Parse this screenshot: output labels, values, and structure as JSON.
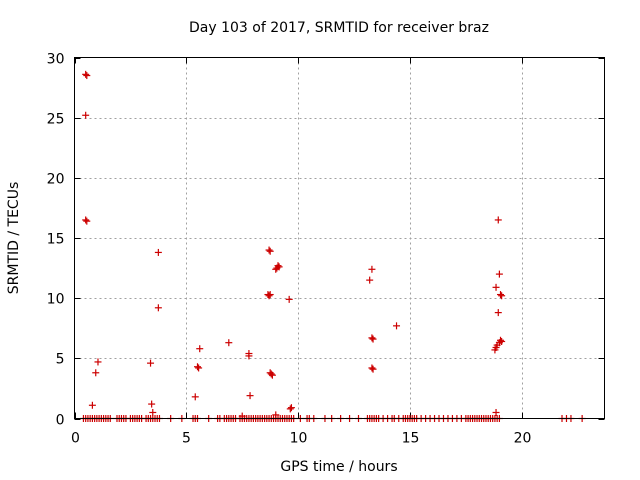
{
  "chart_data": {
    "type": "scatter",
    "title": "Day 103 of 2017, SRMTID for receiver braz",
    "xlabel": "GPS time / hours",
    "ylabel": "SRMTID / TECUs",
    "xlim": [
      0,
      23.7
    ],
    "ylim": [
      0,
      30
    ],
    "xticks": [
      0,
      5,
      10,
      15,
      20
    ],
    "yticks": [
      0,
      5,
      10,
      15,
      20,
      25,
      30
    ],
    "grid": true,
    "marker": "+",
    "marker_color": "#cc0000",
    "series": [
      {
        "name": "SRMTID",
        "points": [
          [
            0.5,
            28.6
          ],
          [
            0.55,
            28.5
          ],
          [
            0.5,
            25.2
          ],
          [
            0.5,
            16.5
          ],
          [
            0.55,
            16.4
          ],
          [
            0.8,
            1.1
          ],
          [
            0.95,
            3.8
          ],
          [
            1.05,
            4.7
          ],
          [
            3.4,
            4.6
          ],
          [
            3.45,
            1.2
          ],
          [
            3.5,
            0.5
          ],
          [
            3.75,
            13.8
          ],
          [
            3.75,
            9.2
          ],
          [
            5.4,
            1.8
          ],
          [
            5.5,
            4.3
          ],
          [
            5.55,
            4.2
          ],
          [
            5.6,
            5.8
          ],
          [
            6.9,
            6.3
          ],
          [
            7.8,
            5.4
          ],
          [
            7.8,
            5.2
          ],
          [
            7.85,
            1.9
          ],
          [
            8.7,
            14.0
          ],
          [
            8.75,
            13.9
          ],
          [
            8.65,
            10.3
          ],
          [
            8.7,
            10.2
          ],
          [
            8.75,
            10.3
          ],
          [
            8.75,
            3.8
          ],
          [
            8.8,
            3.7
          ],
          [
            8.85,
            3.6
          ],
          [
            9.05,
            12.5
          ],
          [
            9.1,
            12.7
          ],
          [
            9.15,
            12.6
          ],
          [
            9.0,
            12.4
          ],
          [
            9.6,
            9.9
          ],
          [
            9.65,
            0.8
          ],
          [
            9.7,
            0.9
          ],
          [
            13.2,
            11.5
          ],
          [
            13.3,
            12.4
          ],
          [
            13.3,
            6.7
          ],
          [
            13.35,
            6.6
          ],
          [
            13.3,
            4.2
          ],
          [
            13.35,
            4.1
          ],
          [
            14.4,
            7.7
          ],
          [
            18.8,
            5.7
          ],
          [
            18.85,
            5.9
          ],
          [
            18.9,
            6.1
          ],
          [
            19.0,
            6.3
          ],
          [
            19.05,
            6.5
          ],
          [
            19.1,
            6.4
          ],
          [
            18.85,
            10.9
          ],
          [
            19.0,
            12.0
          ],
          [
            19.05,
            10.3
          ],
          [
            19.1,
            10.2
          ],
          [
            18.95,
            8.8
          ],
          [
            18.95,
            16.5
          ],
          [
            18.85,
            0.5
          ],
          [
            9.0,
            0.3
          ],
          [
            7.5,
            0.2
          ]
        ],
        "baseline_x": [
          0.4,
          0.5,
          0.6,
          0.7,
          0.8,
          0.9,
          1.0,
          1.1,
          1.2,
          1.3,
          1.4,
          1.5,
          1.6,
          1.9,
          2.0,
          2.1,
          2.2,
          2.3,
          2.5,
          2.6,
          2.7,
          2.8,
          2.9,
          3.0,
          3.2,
          3.3,
          3.4,
          3.5,
          3.6,
          3.7,
          3.8,
          4.3,
          4.8,
          5.3,
          5.4,
          5.5,
          6.0,
          6.4,
          6.5,
          6.7,
          6.8,
          6.9,
          7.0,
          7.1,
          7.2,
          7.4,
          7.5,
          7.6,
          7.7,
          7.8,
          7.9,
          8.0,
          8.1,
          8.2,
          8.3,
          8.4,
          8.5,
          8.6,
          8.7,
          8.8,
          8.9,
          9.0,
          9.1,
          9.2,
          9.3,
          9.4,
          9.5,
          9.6,
          9.7,
          9.8,
          10.1,
          10.4,
          10.5,
          10.7,
          11.2,
          11.5,
          11.9,
          12.3,
          12.7,
          13.1,
          13.2,
          13.3,
          13.4,
          13.5,
          13.6,
          13.8,
          14.0,
          14.2,
          14.3,
          14.5,
          14.7,
          14.8,
          14.9,
          15.0,
          15.1,
          15.2,
          15.3,
          15.5,
          15.7,
          15.9,
          16.1,
          16.3,
          16.5,
          16.7,
          16.9,
          17.1,
          17.3,
          17.5,
          17.6,
          17.7,
          17.8,
          17.9,
          18.0,
          18.1,
          18.2,
          18.3,
          18.4,
          18.5,
          18.6,
          18.7,
          18.8,
          18.9,
          19.0,
          21.8,
          22.0,
          22.2,
          22.7
        ],
        "baseline_y": 0
      }
    ]
  }
}
